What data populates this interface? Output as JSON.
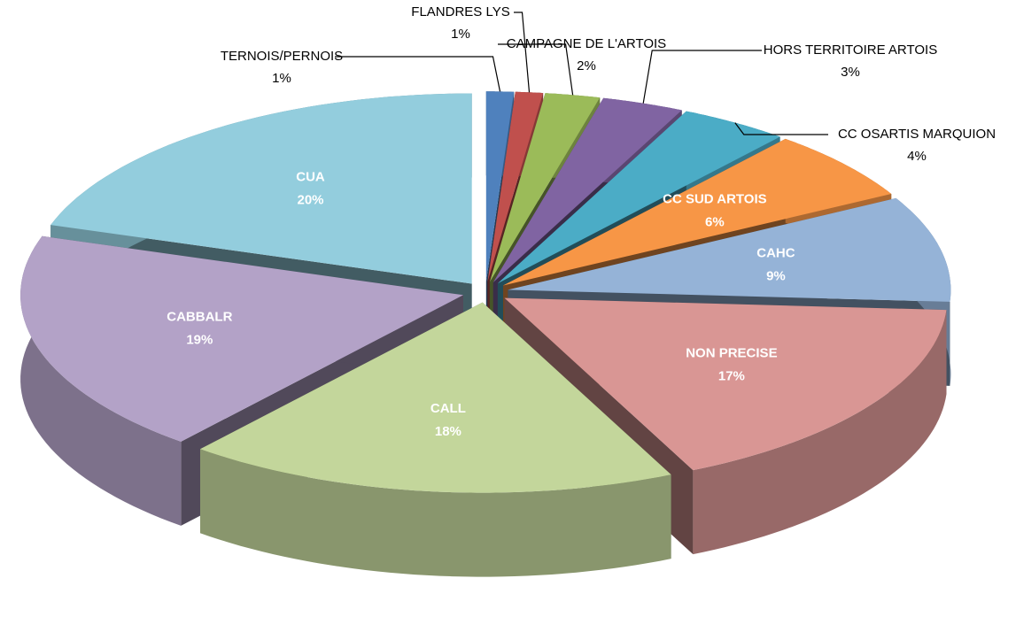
{
  "chart_data": {
    "type": "pie3d",
    "categories": [
      "TERNOIS/PERNOIS",
      "FLANDRES LYS",
      "CAMPAGNE DE L'ARTOIS",
      "HORS TERRITOIRE ARTOIS",
      "CC OSARTIS MARQUION",
      "CC SUD ARTOIS",
      "CAHC",
      "NON PRECISE",
      "CALL",
      "CABBALR",
      "CUA"
    ],
    "values": [
      1,
      1,
      2,
      3,
      4,
      6,
      9,
      17,
      18,
      19,
      20
    ],
    "value_labels": [
      "1%",
      "1%",
      "2%",
      "3%",
      "4%",
      "6%",
      "9%",
      "17%",
      "18%",
      "19%",
      "20%"
    ],
    "colors": [
      "#4f81bd",
      "#c0504d",
      "#9bbb59",
      "#8064a2",
      "#4bacc6",
      "#f79646",
      "#95b3d7",
      "#d99694",
      "#c3d69b",
      "#b3a2c7",
      "#93cddd"
    ]
  }
}
